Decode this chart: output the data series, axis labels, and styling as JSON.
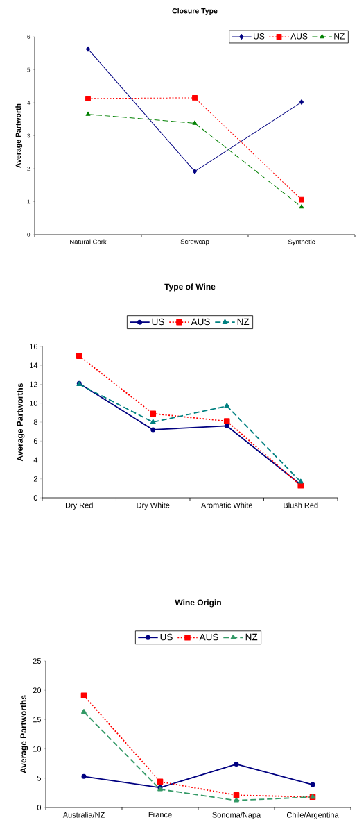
{
  "chart_data": [
    {
      "type": "line",
      "title": "Closure Type",
      "ylabel": "Average Partworth",
      "categories": [
        "Natural Cork",
        "Screwcap",
        "Synthetic"
      ],
      "ylim": [
        0,
        6
      ],
      "yticks": [
        0,
        1,
        2,
        3,
        4,
        5,
        6
      ],
      "legend": "top right",
      "series": [
        {
          "name": "US",
          "color": "#000080",
          "marker": "diamond",
          "line_style": "solid",
          "values": [
            5.63,
            1.92,
            4.02
          ]
        },
        {
          "name": "AUS",
          "color": "#ff0000",
          "marker": "square",
          "line_style": "dotted",
          "values": [
            4.13,
            4.15,
            1.06
          ]
        },
        {
          "name": "NZ",
          "color": "#008000",
          "marker": "triangle",
          "line_style": "dashed",
          "values": [
            3.65,
            3.38,
            0.84
          ]
        }
      ]
    },
    {
      "type": "line",
      "title": "Type of Wine",
      "ylabel": "Average Partworths",
      "categories": [
        "Dry Red",
        "Dry White",
        "Aromatic White",
        "Blush Red"
      ],
      "ylim": [
        0,
        16
      ],
      "yticks": [
        0,
        2,
        4,
        6,
        8,
        10,
        12,
        14,
        16
      ],
      "legend": "top",
      "series": [
        {
          "name": "US",
          "color": "#000080",
          "marker": "circle",
          "line_style": "solid",
          "values": [
            12.1,
            7.2,
            7.6,
            1.4
          ]
        },
        {
          "name": "AUS",
          "color": "#ff0000",
          "marker": "square",
          "line_style": "dotted",
          "values": [
            15.0,
            8.9,
            8.1,
            1.3
          ]
        },
        {
          "name": "NZ",
          "color": "#008080",
          "marker": "triangle",
          "line_style": "dashed",
          "values": [
            12.0,
            8.0,
            9.7,
            1.7
          ]
        }
      ]
    },
    {
      "type": "line",
      "title": "Wine Origin",
      "ylabel": "Average Partworths",
      "categories": [
        "Australia/NZ",
        "France",
        "Sonoma/Napa",
        "Chile/Argentina"
      ],
      "ylim": [
        0,
        25
      ],
      "yticks": [
        0,
        5,
        10,
        15,
        20,
        25
      ],
      "legend": "top",
      "series": [
        {
          "name": "US",
          "color": "#000080",
          "marker": "circle",
          "line_style": "solid",
          "values": [
            5.3,
            3.4,
            7.4,
            3.9
          ]
        },
        {
          "name": "AUS",
          "color": "#ff0000",
          "marker": "square",
          "line_style": "dotted",
          "values": [
            19.1,
            4.4,
            2.1,
            1.8
          ]
        },
        {
          "name": "NZ",
          "color": "#339966",
          "marker": "triangle",
          "line_style": "dashed",
          "values": [
            16.3,
            3.1,
            1.2,
            1.8
          ]
        }
      ]
    }
  ]
}
